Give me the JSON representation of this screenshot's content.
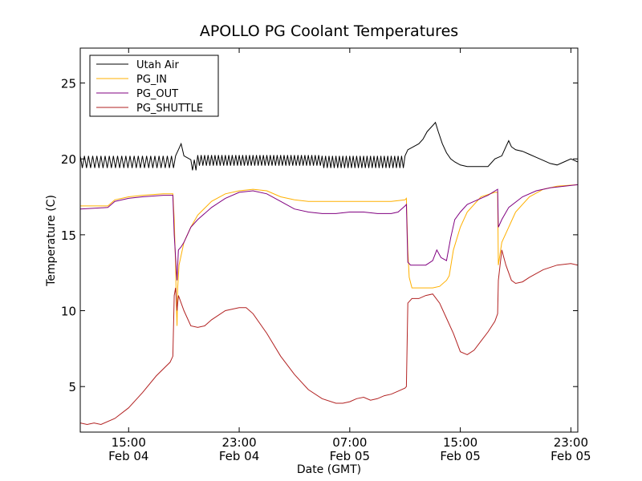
{
  "chart_data": {
    "type": "line",
    "title": "APOLLO PG Coolant Temperatures",
    "xlabel": "Date (GMT)",
    "ylabel": "Temperature (C)",
    "x_unit": "hours since Feb 04 00:00 GMT",
    "xlim": [
      11.5,
      47.5
    ],
    "ylim": [
      2,
      27.3
    ],
    "yticks": [
      5,
      10,
      15,
      20,
      25
    ],
    "ytick_labels": [
      "5",
      "10",
      "15",
      "20",
      "25"
    ],
    "xticks": [
      {
        "x": 15,
        "time": "15:00",
        "date": "Feb 04"
      },
      {
        "x": 23,
        "time": "23:00",
        "date": "Feb 04"
      },
      {
        "x": 31,
        "time": "07:00",
        "date": "Feb 05"
      },
      {
        "x": 39,
        "time": "15:00",
        "date": "Feb 05"
      },
      {
        "x": 47,
        "time": "23:00",
        "date": "Feb 05"
      }
    ],
    "grid": false,
    "legend_position": "top-left",
    "series": [
      {
        "name": "Utah Air",
        "color": "#000000",
        "oscillation": [
          {
            "x_start": 11.5,
            "x_end": 18.5,
            "period": 0.3,
            "amplitude": 0.4
          },
          {
            "x_start": 19.5,
            "x_end": 29.0,
            "period": 0.25,
            "amplitude": 0.35
          },
          {
            "x_start": 29.0,
            "x_end": 35.0,
            "period": 0.25,
            "amplitude": 0.4
          }
        ],
        "points": [
          [
            11.5,
            19.8
          ],
          [
            18.5,
            19.8
          ],
          [
            18.6,
            20.6
          ],
          [
            18.8,
            21.0
          ],
          [
            19.0,
            20.2
          ],
          [
            19.5,
            19.6
          ],
          [
            20.0,
            19.9
          ],
          [
            25.0,
            19.9
          ],
          [
            29.0,
            19.8
          ],
          [
            35.0,
            19.8
          ],
          [
            35.2,
            20.6
          ],
          [
            35.6,
            20.8
          ],
          [
            36.0,
            21.0
          ],
          [
            36.3,
            21.3
          ],
          [
            36.6,
            21.8
          ],
          [
            37.0,
            22.2
          ],
          [
            37.2,
            22.4
          ],
          [
            37.4,
            21.8
          ],
          [
            37.7,
            21.0
          ],
          [
            38.0,
            20.4
          ],
          [
            38.3,
            20.0
          ],
          [
            38.6,
            19.8
          ],
          [
            39.0,
            19.6
          ],
          [
            39.5,
            19.5
          ],
          [
            40.0,
            19.5
          ],
          [
            40.5,
            19.5
          ],
          [
            41.0,
            19.5
          ],
          [
            41.5,
            20.0
          ],
          [
            42.0,
            20.2
          ],
          [
            42.3,
            20.8
          ],
          [
            42.5,
            21.2
          ],
          [
            42.7,
            20.8
          ],
          [
            43.0,
            20.6
          ],
          [
            43.5,
            20.5
          ],
          [
            44.0,
            20.3
          ],
          [
            44.5,
            20.1
          ],
          [
            45.0,
            19.9
          ],
          [
            45.5,
            19.7
          ],
          [
            46.0,
            19.6
          ],
          [
            46.5,
            19.8
          ],
          [
            47.0,
            20.0
          ],
          [
            47.5,
            19.8
          ]
        ]
      },
      {
        "name": "PG_IN",
        "color": "#ffb000",
        "points": [
          [
            11.5,
            16.9
          ],
          [
            13.5,
            16.9
          ],
          [
            14.0,
            17.3
          ],
          [
            15.0,
            17.5
          ],
          [
            16.0,
            17.6
          ],
          [
            17.5,
            17.7
          ],
          [
            18.2,
            17.7
          ],
          [
            18.3,
            16.0
          ],
          [
            18.4,
            13.0
          ],
          [
            18.45,
            10.5
          ],
          [
            18.5,
            9.0
          ],
          [
            18.55,
            11.5
          ],
          [
            18.65,
            13.0
          ],
          [
            19.0,
            14.5
          ],
          [
            19.5,
            15.5
          ],
          [
            20.0,
            16.3
          ],
          [
            21.0,
            17.2
          ],
          [
            22.0,
            17.7
          ],
          [
            23.0,
            17.9
          ],
          [
            24.0,
            18.0
          ],
          [
            25.0,
            17.9
          ],
          [
            26.0,
            17.5
          ],
          [
            27.0,
            17.3
          ],
          [
            28.0,
            17.2
          ],
          [
            30.0,
            17.2
          ],
          [
            32.0,
            17.2
          ],
          [
            34.0,
            17.2
          ],
          [
            35.0,
            17.3
          ],
          [
            35.1,
            17.4
          ],
          [
            35.2,
            14.0
          ],
          [
            35.3,
            12.2
          ],
          [
            35.5,
            11.5
          ],
          [
            36.0,
            11.5
          ],
          [
            37.0,
            11.5
          ],
          [
            37.5,
            11.6
          ],
          [
            38.0,
            12.0
          ],
          [
            38.2,
            12.3
          ],
          [
            38.5,
            14.0
          ],
          [
            39.0,
            15.5
          ],
          [
            39.5,
            16.5
          ],
          [
            40.0,
            17.0
          ],
          [
            40.5,
            17.5
          ],
          [
            41.5,
            17.8
          ],
          [
            41.7,
            17.8
          ],
          [
            41.75,
            13.0
          ],
          [
            42.0,
            14.5
          ],
          [
            42.5,
            15.5
          ],
          [
            43.0,
            16.5
          ],
          [
            44.0,
            17.5
          ],
          [
            45.0,
            18.0
          ],
          [
            46.0,
            18.2
          ],
          [
            47.5,
            18.3
          ]
        ]
      },
      {
        "name": "PG_OUT",
        "color": "#800080",
        "points": [
          [
            11.5,
            16.7
          ],
          [
            13.5,
            16.8
          ],
          [
            14.0,
            17.2
          ],
          [
            15.0,
            17.4
          ],
          [
            16.0,
            17.5
          ],
          [
            17.5,
            17.6
          ],
          [
            18.2,
            17.6
          ],
          [
            18.3,
            15.0
          ],
          [
            18.4,
            13.5
          ],
          [
            18.5,
            12.0
          ],
          [
            18.6,
            14.0
          ],
          [
            18.8,
            14.2
          ],
          [
            19.0,
            14.5
          ],
          [
            19.5,
            15.5
          ],
          [
            20.0,
            16.0
          ],
          [
            21.0,
            16.8
          ],
          [
            22.0,
            17.4
          ],
          [
            23.0,
            17.8
          ],
          [
            24.0,
            17.9
          ],
          [
            25.0,
            17.7
          ],
          [
            26.0,
            17.2
          ],
          [
            27.0,
            16.7
          ],
          [
            28.0,
            16.5
          ],
          [
            29.0,
            16.4
          ],
          [
            30.0,
            16.4
          ],
          [
            31.0,
            16.5
          ],
          [
            32.0,
            16.5
          ],
          [
            33.0,
            16.4
          ],
          [
            34.0,
            16.4
          ],
          [
            34.5,
            16.5
          ],
          [
            35.0,
            16.9
          ],
          [
            35.1,
            17.0
          ],
          [
            35.2,
            13.2
          ],
          [
            35.4,
            13.0
          ],
          [
            36.0,
            13.0
          ],
          [
            36.5,
            13.0
          ],
          [
            37.0,
            13.3
          ],
          [
            37.3,
            14.0
          ],
          [
            37.6,
            13.5
          ],
          [
            38.0,
            13.3
          ],
          [
            38.3,
            14.8
          ],
          [
            38.6,
            16.0
          ],
          [
            39.0,
            16.5
          ],
          [
            39.5,
            17.0
          ],
          [
            40.0,
            17.2
          ],
          [
            41.0,
            17.6
          ],
          [
            41.7,
            18.0
          ],
          [
            41.75,
            15.5
          ],
          [
            42.0,
            16.0
          ],
          [
            42.5,
            16.8
          ],
          [
            43.5,
            17.5
          ],
          [
            44.5,
            17.9
          ],
          [
            45.5,
            18.1
          ],
          [
            47.5,
            18.3
          ]
        ]
      },
      {
        "name": "PG_SHUTTLE",
        "color": "#b22222",
        "points": [
          [
            11.5,
            2.6
          ],
          [
            12.0,
            2.5
          ],
          [
            12.5,
            2.6
          ],
          [
            13.0,
            2.5
          ],
          [
            14.0,
            2.9
          ],
          [
            15.0,
            3.6
          ],
          [
            16.0,
            4.6
          ],
          [
            17.0,
            5.7
          ],
          [
            18.0,
            6.6
          ],
          [
            18.2,
            7.0
          ],
          [
            18.3,
            11.0
          ],
          [
            18.4,
            11.5
          ],
          [
            18.5,
            10.0
          ],
          [
            18.6,
            11.0
          ],
          [
            19.0,
            10.0
          ],
          [
            19.5,
            9.0
          ],
          [
            20.0,
            8.9
          ],
          [
            20.5,
            9.0
          ],
          [
            21.0,
            9.4
          ],
          [
            22.0,
            10.0
          ],
          [
            23.0,
            10.2
          ],
          [
            23.5,
            10.2
          ],
          [
            24.0,
            9.8
          ],
          [
            25.0,
            8.5
          ],
          [
            26.0,
            7.0
          ],
          [
            27.0,
            5.8
          ],
          [
            28.0,
            4.8
          ],
          [
            29.0,
            4.2
          ],
          [
            30.0,
            3.9
          ],
          [
            30.5,
            3.9
          ],
          [
            31.0,
            4.0
          ],
          [
            31.5,
            4.2
          ],
          [
            32.0,
            4.3
          ],
          [
            32.5,
            4.1
          ],
          [
            33.0,
            4.2
          ],
          [
            33.5,
            4.4
          ],
          [
            34.0,
            4.5
          ],
          [
            34.5,
            4.7
          ],
          [
            35.0,
            4.9
          ],
          [
            35.1,
            5.0
          ],
          [
            35.2,
            10.5
          ],
          [
            35.5,
            10.8
          ],
          [
            36.0,
            10.8
          ],
          [
            36.5,
            11.0
          ],
          [
            37.0,
            11.1
          ],
          [
            37.5,
            10.5
          ],
          [
            38.0,
            9.5
          ],
          [
            38.5,
            8.5
          ],
          [
            39.0,
            7.3
          ],
          [
            39.5,
            7.1
          ],
          [
            40.0,
            7.4
          ],
          [
            40.5,
            8.0
          ],
          [
            41.0,
            8.6
          ],
          [
            41.5,
            9.3
          ],
          [
            41.7,
            9.8
          ],
          [
            41.75,
            12.0
          ],
          [
            42.0,
            14.0
          ],
          [
            42.3,
            13.0
          ],
          [
            42.7,
            12.0
          ],
          [
            43.0,
            11.8
          ],
          [
            43.5,
            11.9
          ],
          [
            44.0,
            12.2
          ],
          [
            45.0,
            12.7
          ],
          [
            46.0,
            13.0
          ],
          [
            47.0,
            13.1
          ],
          [
            47.5,
            13.0
          ]
        ]
      }
    ]
  }
}
